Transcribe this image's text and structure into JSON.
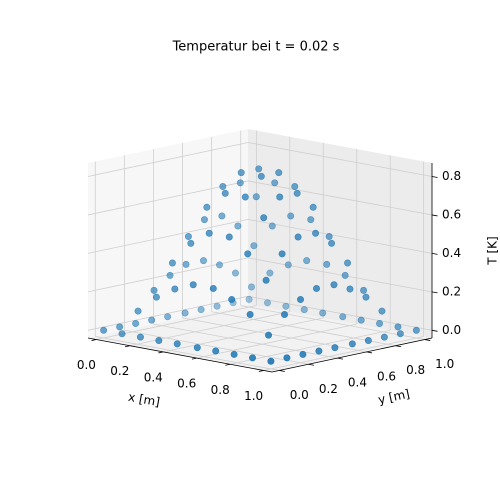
{
  "chart_data": {
    "type": "scatter3d",
    "title": "Temperatur bei t = 0.02 s",
    "xlabel": "x [m]",
    "ylabel": "y [m]",
    "zlabel": "T [K]",
    "color": "#1f77b4",
    "grid": true,
    "xlim": [
      -0.05,
      1.05
    ],
    "ylim": [
      -0.05,
      1.05
    ],
    "zlim": [
      -0.04,
      0.87
    ],
    "xticks": [
      {
        "value": 0,
        "label": "0.0"
      },
      {
        "value": 0.2,
        "label": "0.2"
      },
      {
        "value": 0.4,
        "label": "0.4"
      },
      {
        "value": 0.6,
        "label": "0.6"
      },
      {
        "value": 0.8,
        "label": "0.8"
      },
      {
        "value": 1,
        "label": "1.0"
      }
    ],
    "yticks": [
      {
        "value": 0,
        "label": "0.0"
      },
      {
        "value": 0.2,
        "label": "0.2"
      },
      {
        "value": 0.4,
        "label": "0.4"
      },
      {
        "value": 0.6,
        "label": "0.6"
      },
      {
        "value": 0.8,
        "label": "0.8"
      },
      {
        "value": 1,
        "label": "1.0"
      }
    ],
    "zticks": [
      {
        "value": 0,
        "label": "0.0"
      },
      {
        "value": 0.2,
        "label": "0.2"
      },
      {
        "value": 0.4,
        "label": "0.4"
      },
      {
        "value": 0.6,
        "label": "0.6"
      },
      {
        "value": 0.8,
        "label": "0.8"
      }
    ],
    "x": [
      0,
      0,
      0,
      0,
      0,
      0,
      0,
      0,
      0,
      0,
      0.11,
      0.11,
      0.11,
      0.11,
      0.11,
      0.11,
      0.11,
      0.11,
      0.11,
      0.11,
      0.22,
      0.22,
      0.22,
      0.22,
      0.22,
      0.22,
      0.22,
      0.22,
      0.22,
      0.22,
      0.33,
      0.33,
      0.33,
      0.33,
      0.33,
      0.33,
      0.33,
      0.33,
      0.33,
      0.33,
      0.44,
      0.44,
      0.44,
      0.44,
      0.44,
      0.44,
      0.44,
      0.44,
      0.44,
      0.44,
      0.56,
      0.56,
      0.56,
      0.56,
      0.56,
      0.56,
      0.56,
      0.56,
      0.56,
      0.56,
      0.67,
      0.67,
      0.67,
      0.67,
      0.67,
      0.67,
      0.67,
      0.67,
      0.67,
      0.67,
      0.78,
      0.78,
      0.78,
      0.78,
      0.78,
      0.78,
      0.78,
      0.78,
      0.78,
      0.78,
      0.89,
      0.89,
      0.89,
      0.89,
      0.89,
      0.89,
      0.89,
      0.89,
      0.89,
      0.89,
      1,
      1,
      1,
      1,
      1,
      1,
      1,
      1,
      1,
      1
    ],
    "y": [
      0,
      0.11,
      0.22,
      0.33,
      0.44,
      0.56,
      0.67,
      0.78,
      0.89,
      1,
      0,
      0.11,
      0.22,
      0.33,
      0.44,
      0.56,
      0.67,
      0.78,
      0.89,
      1,
      0,
      0.11,
      0.22,
      0.33,
      0.44,
      0.56,
      0.67,
      0.78,
      0.89,
      1,
      0,
      0.11,
      0.22,
      0.33,
      0.44,
      0.56,
      0.67,
      0.78,
      0.89,
      1,
      0,
      0.11,
      0.22,
      0.33,
      0.44,
      0.56,
      0.67,
      0.78,
      0.89,
      1,
      0,
      0.11,
      0.22,
      0.33,
      0.44,
      0.56,
      0.67,
      0.78,
      0.89,
      1,
      0,
      0.11,
      0.22,
      0.33,
      0.44,
      0.56,
      0.67,
      0.78,
      0.89,
      1,
      0,
      0.11,
      0.22,
      0.33,
      0.44,
      0.56,
      0.67,
      0.78,
      0.89,
      1,
      0,
      0.11,
      0.22,
      0.33,
      0.44,
      0.56,
      0.67,
      0.78,
      0.89,
      1,
      0,
      0.11,
      0.22,
      0.33,
      0.44,
      0.56,
      0.67,
      0.78,
      0.89,
      1
    ],
    "z": [
      0,
      0,
      0,
      0,
      0,
      0,
      0,
      0,
      0,
      0,
      0,
      0.1,
      0.19,
      0.25,
      0.29,
      0.29,
      0.25,
      0.19,
      0.1,
      0,
      0,
      0.19,
      0.35,
      0.47,
      0.54,
      0.54,
      0.47,
      0.35,
      0.19,
      0,
      0,
      0.25,
      0.47,
      0.64,
      0.73,
      0.73,
      0.64,
      0.47,
      0.25,
      0,
      0,
      0.29,
      0.54,
      0.73,
      0.82,
      0.82,
      0.73,
      0.54,
      0.29,
      0,
      0,
      0.29,
      0.54,
      0.73,
      0.82,
      0.82,
      0.73,
      0.54,
      0.29,
      0,
      0,
      0.25,
      0.47,
      0.64,
      0.73,
      0.73,
      0.64,
      0.47,
      0.25,
      0,
      0,
      0.19,
      0.35,
      0.47,
      0.54,
      0.54,
      0.47,
      0.35,
      0.19,
      0,
      0,
      0.1,
      0.19,
      0.25,
      0.29,
      0.29,
      0.25,
      0.19,
      0.1,
      0,
      0,
      0,
      0,
      0,
      0,
      0,
      0,
      0,
      0,
      0
    ]
  }
}
